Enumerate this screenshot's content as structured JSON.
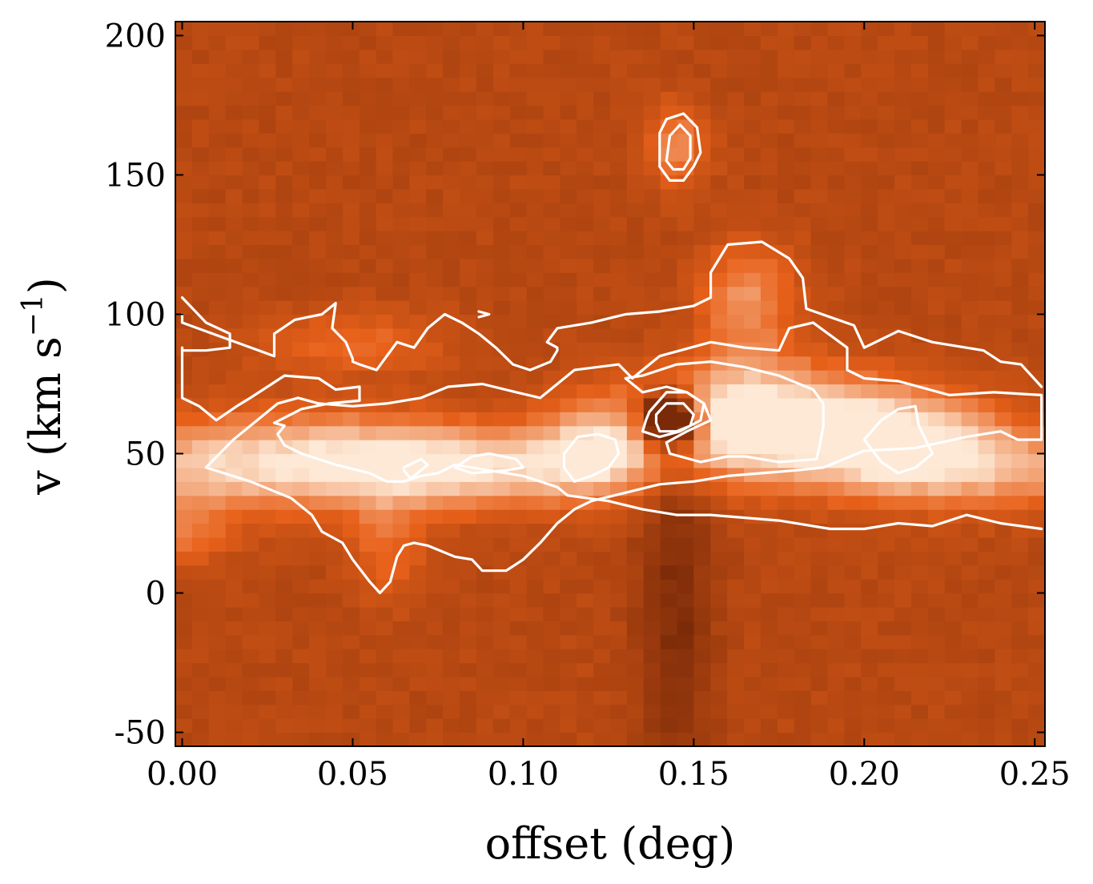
{
  "chart_data": {
    "type": "heatmap",
    "title": "",
    "xlabel": "offset (deg)",
    "ylabel_main": "v (km s",
    "ylabel_exponent": "−1",
    "ylabel_close": ")",
    "xlim": [
      -0.002,
      0.253
    ],
    "ylim": [
      -55,
      205
    ],
    "xticks": [
      0.0,
      0.05,
      0.1,
      0.15,
      0.2,
      0.25
    ],
    "xtick_labels": [
      "0.00",
      "0.05",
      "0.10",
      "0.15",
      "0.20",
      "0.25"
    ],
    "yticks": [
      -50,
      0,
      50,
      100,
      150,
      200
    ],
    "ytick_labels": [
      "-50",
      "0",
      "50",
      "100",
      "150",
      "200"
    ],
    "colormap": "orange-brown (dark brown low, pale peach high)",
    "colors": {
      "low": "#7a2a08",
      "mid": "#e8611a",
      "high": "#fde9d6",
      "contour": "#ffffff"
    },
    "grid": false,
    "emission_features": [
      {
        "x": 0.0,
        "y": 45,
        "sx": 0.02,
        "sy": 12,
        "amp": 0.35
      },
      {
        "x": 0.04,
        "y": 48,
        "sx": 0.03,
        "sy": 12,
        "amp": 0.5
      },
      {
        "x": 0.08,
        "y": 45,
        "sx": 0.03,
        "sy": 10,
        "amp": 0.6
      },
      {
        "x": 0.12,
        "y": 50,
        "sx": 0.012,
        "sy": 10,
        "amp": 0.55
      },
      {
        "x": 0.165,
        "y": 62,
        "sx": 0.025,
        "sy": 14,
        "amp": 0.9
      },
      {
        "x": 0.21,
        "y": 55,
        "sx": 0.02,
        "sy": 12,
        "amp": 0.7
      },
      {
        "x": 0.24,
        "y": 45,
        "sx": 0.03,
        "sy": 10,
        "amp": 0.45
      },
      {
        "x": 0.145,
        "y": 160,
        "sx": 0.006,
        "sy": 10,
        "amp": 0.4
      },
      {
        "x": 0.165,
        "y": 105,
        "sx": 0.01,
        "sy": 15,
        "amp": 0.4
      },
      {
        "x": 0.05,
        "y": 90,
        "sx": 0.02,
        "sy": 8,
        "amp": 0.25
      },
      {
        "x": 0.06,
        "y": 15,
        "sx": 0.008,
        "sy": 12,
        "amp": 0.25
      },
      {
        "x": 0.0,
        "y": 20,
        "sx": 0.01,
        "sy": 8,
        "amp": 0.25
      }
    ],
    "absorption_features": [
      {
        "x": 0.143,
        "y": 62,
        "sx": 0.006,
        "sy": 7,
        "amp": 1.3
      },
      {
        "x": 0.145,
        "y": 0,
        "sx": 0.008,
        "sy": 50,
        "amp": 0.25
      }
    ],
    "contours": [
      {
        "name": "outer-main",
        "points": [
          [
            0.0,
            106
          ],
          [
            0.007,
            97
          ],
          [
            0.014,
            93
          ],
          [
            0.014,
            88
          ],
          [
            0.007,
            87
          ],
          [
            0.0,
            87
          ],
          [
            0.0,
            88
          ],
          [
            0.0,
            70
          ],
          [
            0.005,
            67
          ],
          [
            0.01,
            62
          ],
          [
            0.016,
            67
          ],
          [
            0.02,
            70
          ],
          [
            0.03,
            78
          ],
          [
            0.04,
            77
          ],
          [
            0.045,
            73
          ],
          [
            0.052,
            74
          ],
          [
            0.052,
            69
          ],
          [
            0.043,
            68
          ],
          [
            0.035,
            66
          ],
          [
            0.027,
            61
          ],
          [
            0.03,
            60
          ],
          [
            0.028,
            57
          ],
          [
            0.03,
            53
          ],
          [
            0.035,
            50
          ],
          [
            0.045,
            46
          ],
          [
            0.055,
            43
          ],
          [
            0.06,
            40
          ],
          [
            0.065,
            40
          ],
          [
            0.07,
            42
          ],
          [
            0.075,
            43
          ],
          [
            0.08,
            46
          ],
          [
            0.09,
            44
          ],
          [
            0.1,
            42
          ],
          [
            0.105,
            40
          ],
          [
            0.11,
            38
          ],
          [
            0.113,
            35
          ],
          [
            0.125,
            33
          ],
          [
            0.135,
            30
          ],
          [
            0.145,
            28
          ],
          [
            0.155,
            28
          ],
          [
            0.165,
            27
          ],
          [
            0.175,
            26
          ],
          [
            0.19,
            23
          ],
          [
            0.2,
            23
          ],
          [
            0.21,
            25
          ],
          [
            0.22,
            24
          ],
          [
            0.23,
            28
          ],
          [
            0.24,
            25
          ],
          [
            0.252,
            23
          ]
        ]
      },
      {
        "name": "upper-envelope",
        "points": [
          [
            0.0,
            100
          ],
          [
            0.0,
            97
          ],
          [
            0.027,
            85
          ],
          [
            0.027,
            93
          ],
          [
            0.033,
            98
          ],
          [
            0.041,
            100
          ],
          [
            0.045,
            104
          ],
          [
            0.044,
            95
          ],
          [
            0.048,
            90
          ],
          [
            0.05,
            84
          ],
          [
            0.05,
            83
          ],
          [
            0.052,
            82
          ],
          [
            0.057,
            80
          ],
          [
            0.06,
            85
          ],
          [
            0.063,
            90
          ],
          [
            0.068,
            88
          ],
          [
            0.072,
            95
          ],
          [
            0.077,
            100
          ],
          [
            0.082,
            97
          ],
          [
            0.087,
            93
          ],
          [
            0.092,
            88
          ],
          [
            0.097,
            82
          ],
          [
            0.102,
            80
          ],
          [
            0.108,
            83
          ],
          [
            0.11,
            87
          ],
          [
            0.11,
            88
          ],
          [
            0.107,
            90
          ],
          [
            0.11,
            95
          ],
          [
            0.12,
            97
          ],
          [
            0.13,
            100
          ],
          [
            0.14,
            101
          ],
          [
            0.15,
            103
          ],
          [
            0.155,
            106
          ],
          [
            0.155,
            115
          ],
          [
            0.16,
            125
          ],
          [
            0.17,
            126
          ],
          [
            0.178,
            120
          ],
          [
            0.182,
            113
          ],
          [
            0.183,
            102
          ],
          [
            0.19,
            99
          ],
          [
            0.197,
            96
          ],
          [
            0.2,
            88
          ],
          [
            0.205,
            91
          ],
          [
            0.21,
            94
          ],
          [
            0.22,
            90
          ],
          [
            0.235,
            87
          ],
          [
            0.24,
            83
          ],
          [
            0.246,
            82
          ],
          [
            0.252,
            74
          ]
        ]
      },
      {
        "name": "main-inner",
        "points": [
          [
            0.007,
            45
          ],
          [
            0.015,
            55
          ],
          [
            0.02,
            60
          ],
          [
            0.028,
            68
          ],
          [
            0.034,
            70
          ],
          [
            0.04,
            68
          ],
          [
            0.05,
            67
          ],
          [
            0.06,
            68
          ],
          [
            0.07,
            70
          ],
          [
            0.078,
            74
          ],
          [
            0.088,
            75
          ],
          [
            0.098,
            72
          ],
          [
            0.105,
            70
          ],
          [
            0.11,
            75
          ],
          [
            0.115,
            80
          ],
          [
            0.128,
            82
          ],
          [
            0.132,
            77
          ],
          [
            0.14,
            85
          ],
          [
            0.155,
            90
          ],
          [
            0.165,
            88
          ],
          [
            0.175,
            87
          ],
          [
            0.178,
            95
          ],
          [
            0.185,
            97
          ],
          [
            0.195,
            88
          ],
          [
            0.195,
            80
          ],
          [
            0.2,
            77
          ],
          [
            0.21,
            76
          ],
          [
            0.225,
            71
          ],
          [
            0.238,
            72
          ],
          [
            0.252,
            71
          ],
          [
            0.252,
            55
          ],
          [
            0.245,
            55
          ],
          [
            0.24,
            58
          ],
          [
            0.23,
            56
          ],
          [
            0.215,
            52
          ],
          [
            0.2,
            51
          ],
          [
            0.188,
            45
          ],
          [
            0.18,
            44
          ],
          [
            0.17,
            43
          ],
          [
            0.16,
            42
          ],
          [
            0.15,
            40
          ],
          [
            0.14,
            39
          ],
          [
            0.13,
            36
          ],
          [
            0.12,
            33
          ],
          [
            0.115,
            30
          ],
          [
            0.113,
            28
          ],
          [
            0.11,
            25
          ],
          [
            0.105,
            18
          ],
          [
            0.1,
            12
          ],
          [
            0.095,
            8
          ],
          [
            0.088,
            8
          ],
          [
            0.085,
            12
          ],
          [
            0.08,
            13
          ],
          [
            0.072,
            17
          ],
          [
            0.068,
            18
          ],
          [
            0.065,
            17
          ],
          [
            0.063,
            13
          ],
          [
            0.061,
            4
          ],
          [
            0.058,
            0
          ],
          [
            0.055,
            4
          ],
          [
            0.05,
            12
          ],
          [
            0.047,
            18
          ],
          [
            0.041,
            22
          ],
          [
            0.038,
            28
          ],
          [
            0.032,
            34
          ],
          [
            0.02,
            40
          ],
          [
            0.007,
            45
          ]
        ]
      },
      {
        "name": "knot-1",
        "points": [
          [
            0.065,
            44
          ],
          [
            0.067,
            41
          ],
          [
            0.072,
            46
          ],
          [
            0.07,
            48
          ],
          [
            0.065,
            45
          ]
        ]
      },
      {
        "name": "knot-2",
        "points": [
          [
            0.08,
            45
          ],
          [
            0.085,
            49
          ],
          [
            0.09,
            50
          ],
          [
            0.098,
            48
          ],
          [
            0.1,
            45
          ],
          [
            0.095,
            44
          ],
          [
            0.085,
            43
          ],
          [
            0.08,
            45
          ]
        ]
      },
      {
        "name": "knot-3",
        "points": [
          [
            0.112,
            50
          ],
          [
            0.116,
            56
          ],
          [
            0.122,
            57
          ],
          [
            0.127,
            55
          ],
          [
            0.128,
            50
          ],
          [
            0.125,
            45
          ],
          [
            0.12,
            42
          ],
          [
            0.115,
            40
          ],
          [
            0.112,
            45
          ],
          [
            0.112,
            50
          ]
        ]
      },
      {
        "name": "core-ring-outer",
        "points": [
          [
            0.137,
            65
          ],
          [
            0.142,
            72
          ],
          [
            0.148,
            72
          ],
          [
            0.153,
            68
          ],
          [
            0.152,
            62
          ],
          [
            0.146,
            58
          ],
          [
            0.14,
            56
          ],
          [
            0.135,
            58
          ],
          [
            0.136,
            62
          ],
          [
            0.137,
            65
          ]
        ]
      },
      {
        "name": "core-ring-inner",
        "points": [
          [
            0.139,
            64
          ],
          [
            0.142,
            68
          ],
          [
            0.147,
            68
          ],
          [
            0.15,
            64
          ],
          [
            0.149,
            60
          ],
          [
            0.145,
            58
          ],
          [
            0.14,
            58
          ],
          [
            0.139,
            61
          ],
          [
            0.139,
            64
          ]
        ]
      },
      {
        "name": "core-bright",
        "points": [
          [
            0.13,
            77
          ],
          [
            0.135,
            78
          ],
          [
            0.145,
            82
          ],
          [
            0.155,
            83
          ],
          [
            0.165,
            81
          ],
          [
            0.175,
            78
          ],
          [
            0.185,
            73
          ],
          [
            0.188,
            68
          ],
          [
            0.188,
            60
          ],
          [
            0.187,
            53
          ],
          [
            0.186,
            48
          ],
          [
            0.175,
            47
          ],
          [
            0.165,
            49
          ],
          [
            0.16,
            49
          ],
          [
            0.152,
            47
          ],
          [
            0.143,
            50
          ],
          [
            0.142,
            54
          ],
          [
            0.148,
            58
          ],
          [
            0.155,
            62
          ],
          [
            0.153,
            68
          ],
          [
            0.148,
            72
          ],
          [
            0.142,
            74
          ],
          [
            0.135,
            72
          ],
          [
            0.13,
            77
          ]
        ]
      },
      {
        "name": "east-knot",
        "points": [
          [
            0.2,
            55
          ],
          [
            0.205,
            62
          ],
          [
            0.21,
            66
          ],
          [
            0.215,
            67
          ],
          [
            0.216,
            60
          ],
          [
            0.22,
            50
          ],
          [
            0.215,
            45
          ],
          [
            0.21,
            43
          ],
          [
            0.205,
            47
          ],
          [
            0.2,
            55
          ]
        ]
      },
      {
        "name": "high-v-outer",
        "points": [
          [
            0.14,
            153
          ],
          [
            0.14,
            165
          ],
          [
            0.142,
            170
          ],
          [
            0.147,
            172
          ],
          [
            0.151,
            167
          ],
          [
            0.152,
            158
          ],
          [
            0.15,
            153
          ],
          [
            0.147,
            148
          ],
          [
            0.143,
            148
          ],
          [
            0.14,
            153
          ]
        ]
      },
      {
        "name": "high-v-inner",
        "points": [
          [
            0.142,
            155
          ],
          [
            0.143,
            164
          ],
          [
            0.146,
            168
          ],
          [
            0.149,
            164
          ],
          [
            0.149,
            156
          ],
          [
            0.147,
            152
          ],
          [
            0.144,
            152
          ],
          [
            0.142,
            155
          ]
        ]
      },
      {
        "name": "speck",
        "points": [
          [
            0.087,
            101
          ],
          [
            0.09,
            100
          ],
          [
            0.087,
            99
          ]
        ]
      }
    ]
  }
}
